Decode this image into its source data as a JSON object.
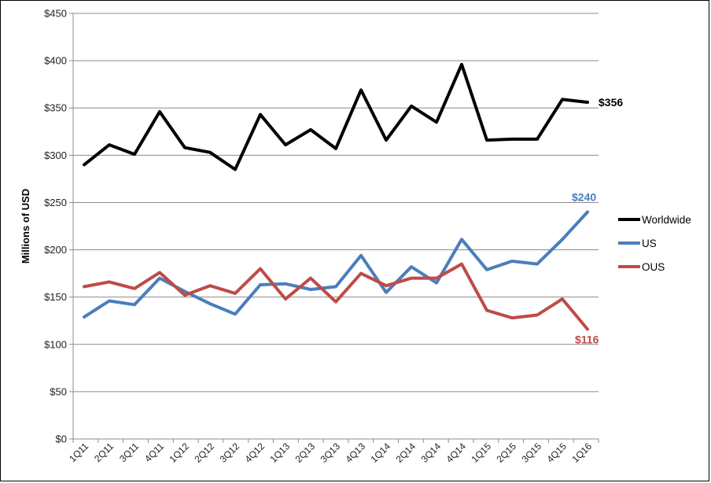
{
  "chart_data": {
    "type": "line",
    "title": "",
    "xlabel": "",
    "ylabel": "Millions of USD",
    "ylim": [
      0,
      450
    ],
    "y_ticks": [
      "$0",
      "$50",
      "$100",
      "$150",
      "$200",
      "$250",
      "$300",
      "$350",
      "$400",
      "$450"
    ],
    "y_tick_values": [
      0,
      50,
      100,
      150,
      200,
      250,
      300,
      350,
      400,
      450
    ],
    "grid": true,
    "legend_position": "right",
    "categories": [
      "1Q11",
      "2Q11",
      "3Q11",
      "4Q11",
      "1Q12",
      "2Q12",
      "3Q12",
      "4Q12",
      "1Q13",
      "2Q13",
      "3Q13",
      "4Q13",
      "1Q14",
      "2Q14",
      "3Q14",
      "4Q14",
      "1Q15",
      "2Q15",
      "3Q15",
      "4Q15",
      "1Q16"
    ],
    "series": [
      {
        "name": "Worldwide",
        "color": "#000000",
        "values": [
          290,
          311,
          301,
          346,
          308,
          303,
          285,
          343,
          311,
          327,
          307,
          369,
          316,
          352,
          335,
          396,
          316,
          317,
          317,
          359,
          356
        ],
        "end_label": "$356"
      },
      {
        "name": "US",
        "color": "#4a7ebb",
        "values": [
          129,
          146,
          142,
          170,
          156,
          143,
          132,
          163,
          164,
          158,
          161,
          194,
          155,
          182,
          165,
          211,
          179,
          188,
          185,
          211,
          240
        ],
        "end_label": "$240"
      },
      {
        "name": "OUS",
        "color": "#be4b48",
        "values": [
          161,
          166,
          159,
          176,
          152,
          162,
          154,
          180,
          148,
          170,
          145,
          175,
          162,
          170,
          170,
          185,
          136,
          128,
          131,
          148,
          116
        ],
        "end_label": "$116"
      }
    ]
  }
}
